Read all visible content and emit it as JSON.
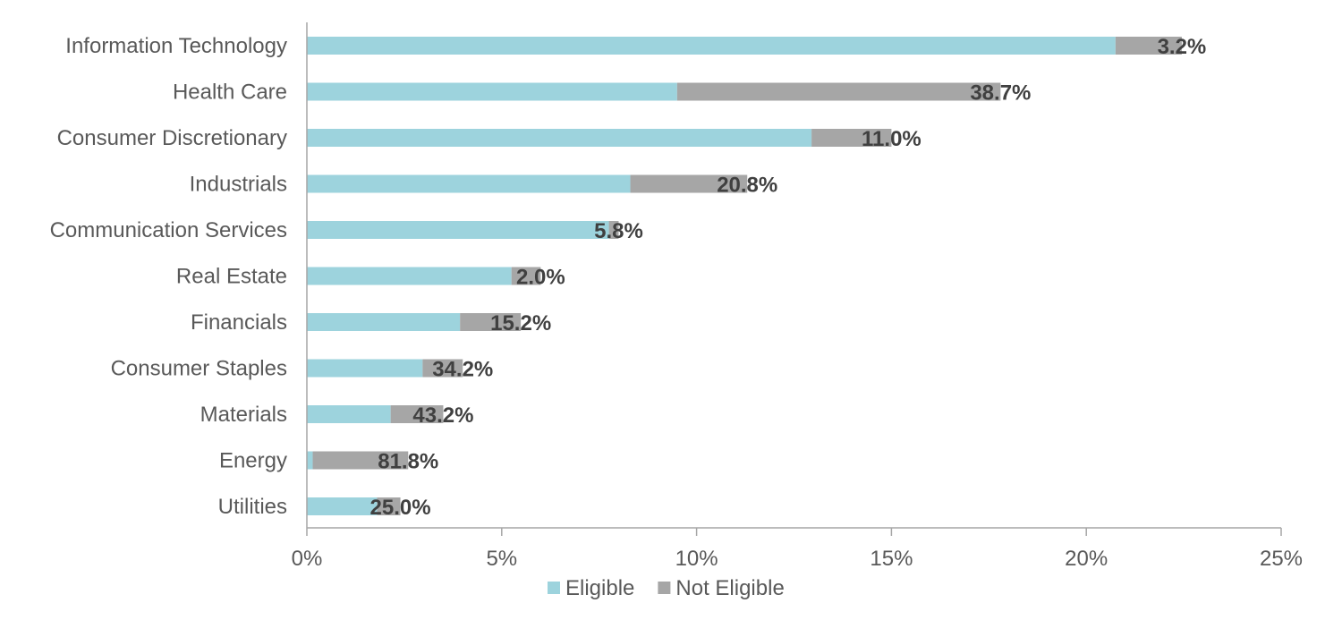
{
  "chart_data": {
    "type": "bar",
    "orientation": "horizontal",
    "stacked": true,
    "categories": [
      "Information Technology",
      "Health Care",
      "Consumer Discretionary",
      "Industrials",
      "Communication Services",
      "Real Estate",
      "Financials",
      "Consumer Staples",
      "Materials",
      "Energy",
      "Utilities"
    ],
    "series": [
      {
        "name": "Eligible",
        "color": "#9dd3dd",
        "values": [
          20.75,
          9.5,
          12.95,
          8.3,
          7.75,
          5.25,
          3.93,
          2.97,
          2.15,
          0.15,
          1.8
        ]
      },
      {
        "name": "Not Eligible",
        "color": "#a6a6a6",
        "values": [
          1.7,
          8.3,
          2.05,
          3.0,
          0.25,
          0.75,
          1.56,
          1.03,
          1.35,
          2.45,
          0.6
        ]
      }
    ],
    "data_labels": [
      "3.2%",
      "38.7%",
      "11.0%",
      "20.8%",
      "5.8%",
      "2.0%",
      "15.2%",
      "34.2%",
      "43.2%",
      "81.8%",
      "25.0%"
    ],
    "xlim": [
      0,
      25
    ],
    "x_ticks": [
      0,
      5,
      10,
      15,
      20,
      25
    ],
    "x_tick_labels": [
      "0%",
      "5%",
      "10%",
      "15%",
      "20%",
      "25%"
    ],
    "title": "",
    "xlabel": "",
    "ylabel": "",
    "grid": false,
    "legend": {
      "position": "bottom",
      "entries": [
        "Eligible",
        "Not Eligible"
      ]
    }
  }
}
